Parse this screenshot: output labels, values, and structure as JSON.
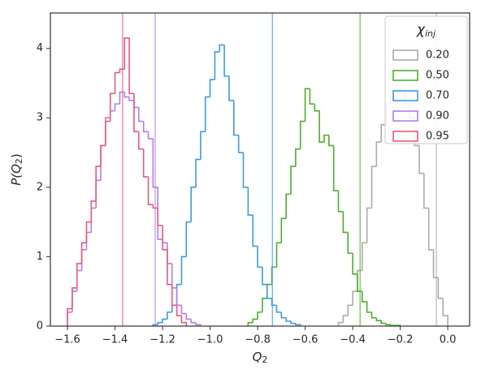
{
  "chart_data": {
    "type": "histogram",
    "x_label": {
      "symbol": "Q",
      "subscript": "2"
    },
    "y_label": {
      "prefix": "P(",
      "symbol": "Q",
      "subscript": "2",
      "suffix": ")"
    },
    "legend_title": {
      "symbol": "χ",
      "subscript": "inj"
    },
    "legend_position": "upper right",
    "xlim": [
      -1.672,
      0.092
    ],
    "ylim": [
      0,
      4.51
    ],
    "xticks": [
      {
        "value": -1.6,
        "label": "−1.6"
      },
      {
        "value": -1.4,
        "label": "−1.4"
      },
      {
        "value": -1.2,
        "label": "−1.2"
      },
      {
        "value": -1.0,
        "label": "−1.0"
      },
      {
        "value": -0.8,
        "label": "−0.8"
      },
      {
        "value": -0.6,
        "label": "−0.6"
      },
      {
        "value": -0.4,
        "label": "−0.4"
      },
      {
        "value": -0.2,
        "label": "−0.2"
      },
      {
        "value": 0,
        "label": "0.0"
      }
    ],
    "yticks": [
      0,
      1,
      2,
      3,
      4
    ],
    "series": [
      {
        "name": "0.20",
        "color": "#ababab",
        "vline": -0.048,
        "bins": [
          -0.46,
          -0.44,
          -0.42,
          -0.4,
          -0.38,
          -0.36,
          -0.34,
          -0.32,
          -0.3,
          -0.28,
          -0.26,
          -0.24,
          -0.22,
          -0.2,
          -0.18,
          -0.16,
          -0.14,
          -0.12,
          -0.1,
          -0.08,
          -0.06,
          -0.04,
          -0.02,
          0.0
        ],
        "values": [
          0.05,
          0.15,
          0.3,
          0.5,
          0.8,
          1.2,
          1.7,
          2.3,
          2.65,
          2.9,
          3.2,
          3.3,
          3.4,
          3.4,
          3.2,
          3.0,
          2.6,
          2.2,
          1.7,
          1.1,
          0.7,
          0.4,
          0.15
        ]
      },
      {
        "name": "0.50",
        "color": "#4caf2c",
        "vline": -0.369,
        "bins": [
          -0.84,
          -0.82,
          -0.8,
          -0.78,
          -0.76,
          -0.74,
          -0.72,
          -0.7,
          -0.68,
          -0.66,
          -0.64,
          -0.62,
          -0.6,
          -0.58,
          -0.56,
          -0.54,
          -0.52,
          -0.5,
          -0.48,
          -0.46,
          -0.44,
          -0.42,
          -0.4,
          -0.38,
          -0.36,
          -0.34,
          -0.32,
          -0.3,
          -0.28,
          -0.26,
          -0.24,
          -0.22,
          -0.2
        ],
        "values": [
          0.05,
          0.1,
          0.2,
          0.4,
          0.6,
          0.85,
          1.2,
          1.55,
          1.9,
          2.3,
          2.55,
          2.95,
          3.42,
          3.2,
          3.1,
          2.65,
          2.75,
          2.6,
          1.95,
          1.65,
          1.35,
          1.05,
          0.75,
          0.5,
          0.35,
          0.2,
          0.12,
          0.08,
          0.04,
          0.02,
          0.01,
          0.01
        ]
      },
      {
        "name": "0.70",
        "color": "#3d9be0",
        "vline": -0.738,
        "bins": [
          -1.24,
          -1.22,
          -1.2,
          -1.18,
          -1.16,
          -1.14,
          -1.12,
          -1.1,
          -1.08,
          -1.06,
          -1.04,
          -1.02,
          -1.0,
          -0.98,
          -0.96,
          -0.94,
          -0.92,
          -0.9,
          -0.88,
          -0.86,
          -0.84,
          -0.82,
          -0.8,
          -0.78,
          -0.76,
          -0.74,
          -0.72,
          -0.7,
          -0.68,
          -0.66,
          -0.64,
          -0.62
        ],
        "values": [
          0.02,
          0.05,
          0.1,
          0.2,
          0.3,
          0.6,
          1.0,
          1.5,
          2.0,
          2.4,
          2.8,
          3.3,
          3.55,
          3.95,
          4.05,
          3.6,
          3.25,
          2.75,
          2.5,
          2.0,
          1.6,
          1.15,
          0.85,
          0.6,
          0.4,
          0.3,
          0.2,
          0.12,
          0.07,
          0.04,
          0.02
        ]
      },
      {
        "name": "0.90",
        "color": "#b67de8",
        "vline": -1.231,
        "bins": [
          -1.6,
          -1.58,
          -1.56,
          -1.54,
          -1.52,
          -1.5,
          -1.48,
          -1.46,
          -1.44,
          -1.42,
          -1.4,
          -1.38,
          -1.36,
          -1.34,
          -1.32,
          -1.3,
          -1.28,
          -1.26,
          -1.24,
          -1.22,
          -1.2,
          -1.18,
          -1.16,
          -1.14,
          -1.12,
          -1.1,
          -1.08,
          -1.06,
          -1.04
        ],
        "values": [
          0.2,
          0.5,
          0.8,
          1.1,
          1.35,
          1.7,
          2.1,
          2.6,
          3.0,
          3.1,
          3.2,
          3.37,
          3.3,
          3.25,
          3.15,
          2.95,
          2.8,
          2.7,
          2.0,
          1.25,
          1.2,
          0.9,
          0.55,
          0.3,
          0.18,
          0.1,
          0.05,
          0.02
        ]
      },
      {
        "name": "0.95",
        "color": "#ea5a7c",
        "vline": -1.368,
        "bins": [
          -1.6,
          -1.58,
          -1.56,
          -1.54,
          -1.52,
          -1.5,
          -1.48,
          -1.46,
          -1.44,
          -1.42,
          -1.4,
          -1.38,
          -1.36,
          -1.34,
          -1.32,
          -1.3,
          -1.28,
          -1.26,
          -1.24,
          -1.22,
          -1.2,
          -1.18,
          -1.16,
          -1.14,
          -1.12,
          -1.1
        ],
        "values": [
          0.25,
          0.55,
          0.9,
          1.2,
          1.5,
          1.8,
          2.3,
          2.6,
          2.95,
          3.35,
          3.65,
          3.7,
          4.15,
          3.35,
          2.8,
          2.55,
          2.15,
          1.75,
          1.7,
          1.45,
          1.1,
          0.6,
          0.3,
          0.15,
          0.05
        ]
      }
    ]
  }
}
